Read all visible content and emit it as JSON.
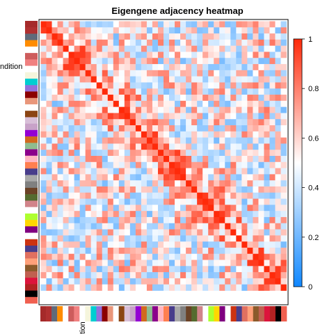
{
  "chart_data": {
    "type": "heatmap",
    "title": "Eigengene adjacency heatmap",
    "row_label_fragment": "ndition",
    "col_label_fragment": "tion",
    "n": 44,
    "color_scale": {
      "min": 0,
      "max": 1,
      "ticks": [
        "0",
        "0.2",
        "0.4",
        "0.6",
        "0.8",
        "1"
      ],
      "tick_values": [
        0,
        0.2,
        0.4,
        0.6,
        0.8,
        1
      ],
      "low_color": "#0f87ff",
      "mid_color": "#ffffff",
      "high_color": "#ff2a0a"
    },
    "module_colors": [
      "#a52a2a",
      "#b03030",
      "#606a7a",
      "#ff8c00",
      "#ffffff",
      "#cd5c5c",
      "#f08080",
      "#ffffff",
      "#f5f5dc",
      "#00ced1",
      "#9370db",
      "#8b0000",
      "#e9967a",
      "#ffffff",
      "#8b4513",
      "#d8bfd8",
      "#c8a2c8",
      "#9400d3",
      "#d2691e",
      "#8fbc8f",
      "#8b008b",
      "#ffb6c1",
      "#ff7f50",
      "#483d8b",
      "#a9a9a9",
      "#808080",
      "#6b4226",
      "#556b2f",
      "#d1848a",
      "#ffffff",
      "#adff2f",
      "#ffd700",
      "#800080",
      "#ffffff",
      "#cc3311",
      "#483d8b",
      "#e07060",
      "#ffa07a",
      "#8b5a2b",
      "#c06050",
      "#dc143c",
      "#b22222",
      "#000000",
      "#f06050"
    ]
  }
}
